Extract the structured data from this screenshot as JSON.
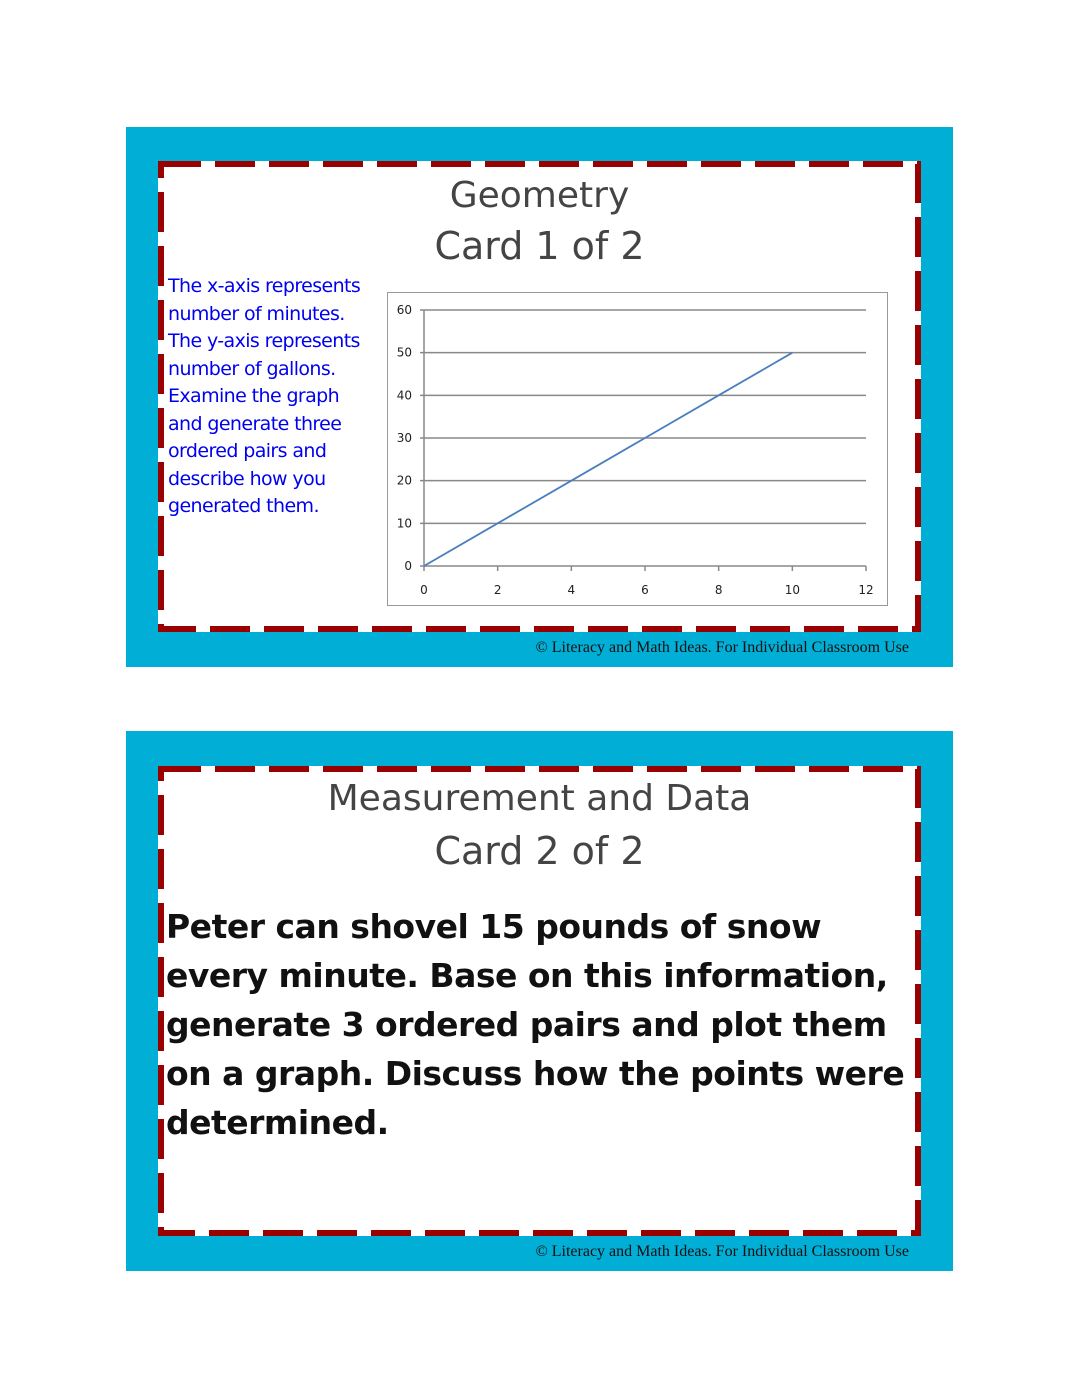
{
  "card1": {
    "title_line1": "Geometry",
    "title_line2": "Card 1 of 2",
    "prompt": "The x-axis represents number of minutes. The y-axis represents number of gallons. Examine the graph and generate three ordered pairs and describe how you generated them.",
    "copyright": "© Literacy and Math Ideas. For Individual Classroom Use"
  },
  "card2": {
    "title_line1": "Measurement and Data",
    "title_line2": "Card 2 of 2",
    "prompt": "Peter can shovel 15 pounds of snow every minute.  Base on this information, generate 3 ordered pairs and plot them on a graph.  Discuss how the points were determined.",
    "copyright": "© Literacy and Math Ideas. For Individual Classroom Use"
  },
  "colors": {
    "frame": "#00AED6",
    "dash": "#990000",
    "prompt_blue": "#0000EE",
    "line": "#4A7EC0"
  },
  "chart_data": {
    "type": "line",
    "x": [
      0,
      2,
      4,
      6,
      8,
      10
    ],
    "y": [
      0,
      10,
      20,
      30,
      40,
      50
    ],
    "xlim": [
      0,
      12
    ],
    "ylim": [
      0,
      60
    ],
    "xticks": [
      "0",
      "2",
      "4",
      "6",
      "8",
      "10",
      "12"
    ],
    "yticks": [
      "0",
      "10",
      "20",
      "30",
      "40",
      "50",
      "60"
    ],
    "grid": "horizontal",
    "title": "",
    "xlabel": "",
    "ylabel": ""
  }
}
